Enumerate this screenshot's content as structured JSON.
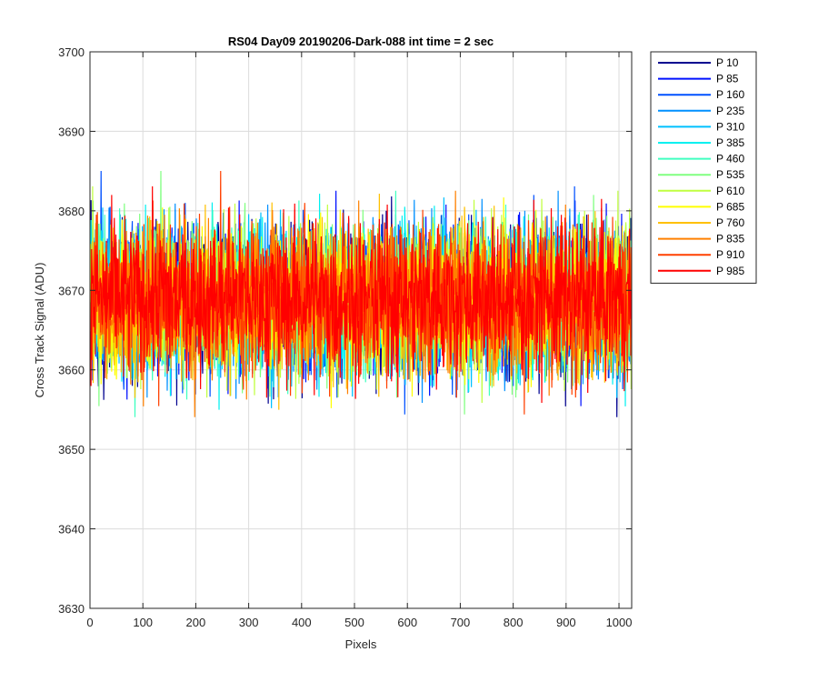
{
  "chart_data": {
    "type": "line",
    "title": "RS04 Day09 20190206-Dark-088 int time = 2 sec",
    "xlabel": "Pixels",
    "ylabel": "Cross Track Signal (ADU)",
    "xlim": [
      0,
      1024
    ],
    "ylim": [
      3630,
      3700
    ],
    "xticks": [
      0,
      100,
      200,
      300,
      400,
      500,
      600,
      700,
      800,
      900,
      1000
    ],
    "yticks": [
      3630,
      3640,
      3650,
      3660,
      3670,
      3680,
      3690,
      3700
    ],
    "grid": true,
    "legend_position": "outside-top-right",
    "n_points": 1024,
    "signal_mean": 3669,
    "signal_noise_std": 6,
    "series": [
      {
        "name": "P 10",
        "color": "#00008f"
      },
      {
        "name": "P 85",
        "color": "#0010ff"
      },
      {
        "name": "P 160",
        "color": "#0050ff"
      },
      {
        "name": "P 235",
        "color": "#0090ff"
      },
      {
        "name": "P 310",
        "color": "#00c0ff"
      },
      {
        "name": "P 385",
        "color": "#00f0f0"
      },
      {
        "name": "P 460",
        "color": "#40ffc0"
      },
      {
        "name": "P 535",
        "color": "#80ff80"
      },
      {
        "name": "P 610",
        "color": "#c0ff40"
      },
      {
        "name": "P 685",
        "color": "#ffff00"
      },
      {
        "name": "P 760",
        "color": "#ffc000"
      },
      {
        "name": "P 835",
        "color": "#ff8000"
      },
      {
        "name": "P 910",
        "color": "#ff4000"
      },
      {
        "name": "P 985",
        "color": "#ff0000"
      }
    ]
  }
}
